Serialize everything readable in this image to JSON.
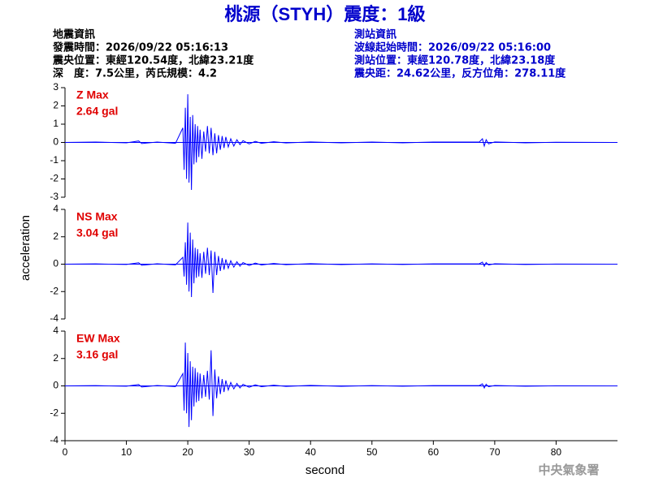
{
  "header": {
    "title": "桃源（STYH）震度：1級",
    "left": [
      "地震資訊",
      "發震時間：2026/09/22 05:16:13",
      "震央位置：東經120.54度，北緯23.21度",
      "深　度：7.5公里，芮氏規模：4.2"
    ],
    "right": [
      "測站資訊",
      "波線起始時間：2026/09/22 05:16:00",
      "測站位置：東經120.78度，北緯23.18度",
      "震央距：24.62公里，反方位角：278.11度"
    ],
    "watermark": "中央氣象署"
  },
  "chart_data": [
    {
      "type": "line",
      "label": "Z Max",
      "max_label": "2.64 gal",
      "color": "#0000ff",
      "xlim": [
        0,
        90
      ],
      "ylim": [
        -3,
        3
      ],
      "yticks": [
        -3,
        -2,
        -1,
        0,
        1,
        2,
        3
      ],
      "x": [
        0,
        5,
        10,
        12,
        12.5,
        15,
        18,
        19.2,
        19.4,
        19.6,
        19.8,
        20.0,
        20.2,
        20.4,
        20.6,
        20.8,
        21.0,
        21.2,
        21.4,
        21.6,
        21.8,
        22.0,
        22.3,
        22.6,
        22.9,
        23.2,
        23.5,
        23.8,
        24.1,
        24.4,
        24.7,
        25.0,
        25.3,
        25.6,
        25.9,
        26.2,
        26.6,
        27.0,
        27.5,
        28,
        28.5,
        29,
        30,
        31,
        32,
        34,
        36,
        40,
        45,
        50,
        55,
        60,
        67.5,
        68,
        68.3,
        68.6,
        69,
        70,
        75,
        80,
        89
      ],
      "values": [
        0,
        0.02,
        -0.02,
        0.08,
        -0.06,
        0.02,
        -0.05,
        0.8,
        -1.5,
        1.9,
        -2.0,
        2.64,
        -2.2,
        1.4,
        -2.6,
        1.5,
        -1.2,
        1.0,
        -1.1,
        0.9,
        -0.8,
        0.7,
        -0.9,
        0.6,
        -0.5,
        0.9,
        -0.6,
        0.8,
        -0.7,
        0.5,
        -0.6,
        0.4,
        -0.4,
        0.35,
        -0.3,
        0.3,
        -0.25,
        0.2,
        -0.2,
        0.15,
        -0.12,
        0.1,
        -0.08,
        0.06,
        -0.05,
        0.04,
        -0.03,
        0.03,
        -0.02,
        0.02,
        -0.02,
        0.02,
        0.03,
        0.2,
        -0.2,
        0.15,
        -0.08,
        0.03,
        -0.02,
        0.01,
        0
      ]
    },
    {
      "type": "line",
      "label": "NS Max",
      "max_label": "3.04 gal",
      "color": "#0000ff",
      "ylabel": "acceleration",
      "xlim": [
        0,
        90
      ],
      "ylim": [
        -4,
        4
      ],
      "yticks": [
        -4,
        -2,
        0,
        2,
        4
      ],
      "x": [
        0,
        5,
        10,
        12,
        12.5,
        15,
        18,
        19.2,
        19.4,
        19.6,
        19.8,
        20.0,
        20.2,
        20.4,
        20.6,
        20.8,
        21.0,
        21.2,
        21.4,
        21.6,
        21.8,
        22.0,
        22.3,
        22.6,
        22.9,
        23.2,
        23.5,
        23.8,
        24.1,
        24.4,
        24.7,
        25.0,
        25.3,
        25.6,
        25.9,
        26.2,
        26.6,
        27.0,
        27.5,
        28,
        28.5,
        29,
        30,
        31,
        32,
        34,
        36,
        40,
        45,
        50,
        55,
        60,
        67.5,
        68,
        68.3,
        68.6,
        69,
        70,
        75,
        80,
        89
      ],
      "values": [
        0,
        0.02,
        -0.02,
        0.1,
        -0.08,
        0.03,
        -0.05,
        0.5,
        -0.9,
        1.6,
        -1.5,
        3.04,
        -2.0,
        2.3,
        -2.4,
        1.8,
        -1.4,
        1.2,
        -1.0,
        1.1,
        -0.9,
        0.8,
        -1.0,
        0.9,
        -0.7,
        1.2,
        -0.8,
        1.0,
        -2.1,
        0.9,
        -0.8,
        0.6,
        -0.5,
        0.45,
        -0.4,
        0.35,
        -0.3,
        0.25,
        -0.22,
        0.18,
        -0.15,
        0.12,
        -0.1,
        0.08,
        -0.06,
        0.05,
        -0.04,
        0.04,
        -0.03,
        0.02,
        -0.02,
        0.02,
        0.03,
        0.15,
        -0.15,
        0.12,
        -0.06,
        0.03,
        -0.02,
        0.01,
        0
      ]
    },
    {
      "type": "line",
      "label": "EW Max",
      "max_label": "3.16 gal",
      "color": "#0000ff",
      "xlabel": "second",
      "xlim": [
        0,
        90
      ],
      "xticks": [
        0,
        10,
        20,
        30,
        40,
        50,
        60,
        70,
        80
      ],
      "ylim": [
        -4,
        4
      ],
      "yticks": [
        -4,
        -2,
        0,
        2,
        4
      ],
      "x": [
        0,
        5,
        10,
        12,
        12.5,
        15,
        18,
        19.2,
        19.4,
        19.6,
        19.8,
        20.0,
        20.2,
        20.4,
        20.6,
        20.8,
        21.0,
        21.2,
        21.4,
        21.6,
        21.8,
        22.0,
        22.3,
        22.6,
        22.9,
        23.2,
        23.5,
        23.8,
        24.1,
        24.4,
        24.7,
        25.0,
        25.3,
        25.6,
        25.9,
        26.2,
        26.6,
        27.0,
        27.5,
        28,
        28.5,
        29,
        30,
        31,
        32,
        34,
        36,
        40,
        45,
        50,
        55,
        60,
        67.5,
        68,
        68.3,
        68.6,
        69,
        70,
        75,
        80,
        89
      ],
      "values": [
        0,
        0.02,
        -0.02,
        0.1,
        -0.08,
        0.03,
        -0.05,
        0.9,
        -1.8,
        3.16,
        -2.0,
        2.4,
        -3.0,
        1.8,
        -2.5,
        1.4,
        -1.5,
        1.3,
        -1.2,
        1.0,
        -1.1,
        0.9,
        -0.9,
        0.8,
        -0.8,
        1.1,
        -1.0,
        2.6,
        -2.2,
        1.2,
        -0.9,
        0.7,
        -0.6,
        0.5,
        -0.45,
        0.4,
        -0.3,
        0.25,
        -0.22,
        0.18,
        -0.15,
        0.12,
        -0.1,
        0.08,
        -0.06,
        0.05,
        -0.04,
        0.04,
        -0.03,
        0.02,
        -0.02,
        0.02,
        0.03,
        0.15,
        -0.15,
        0.12,
        -0.06,
        0.03,
        -0.02,
        0.01,
        0
      ]
    }
  ]
}
